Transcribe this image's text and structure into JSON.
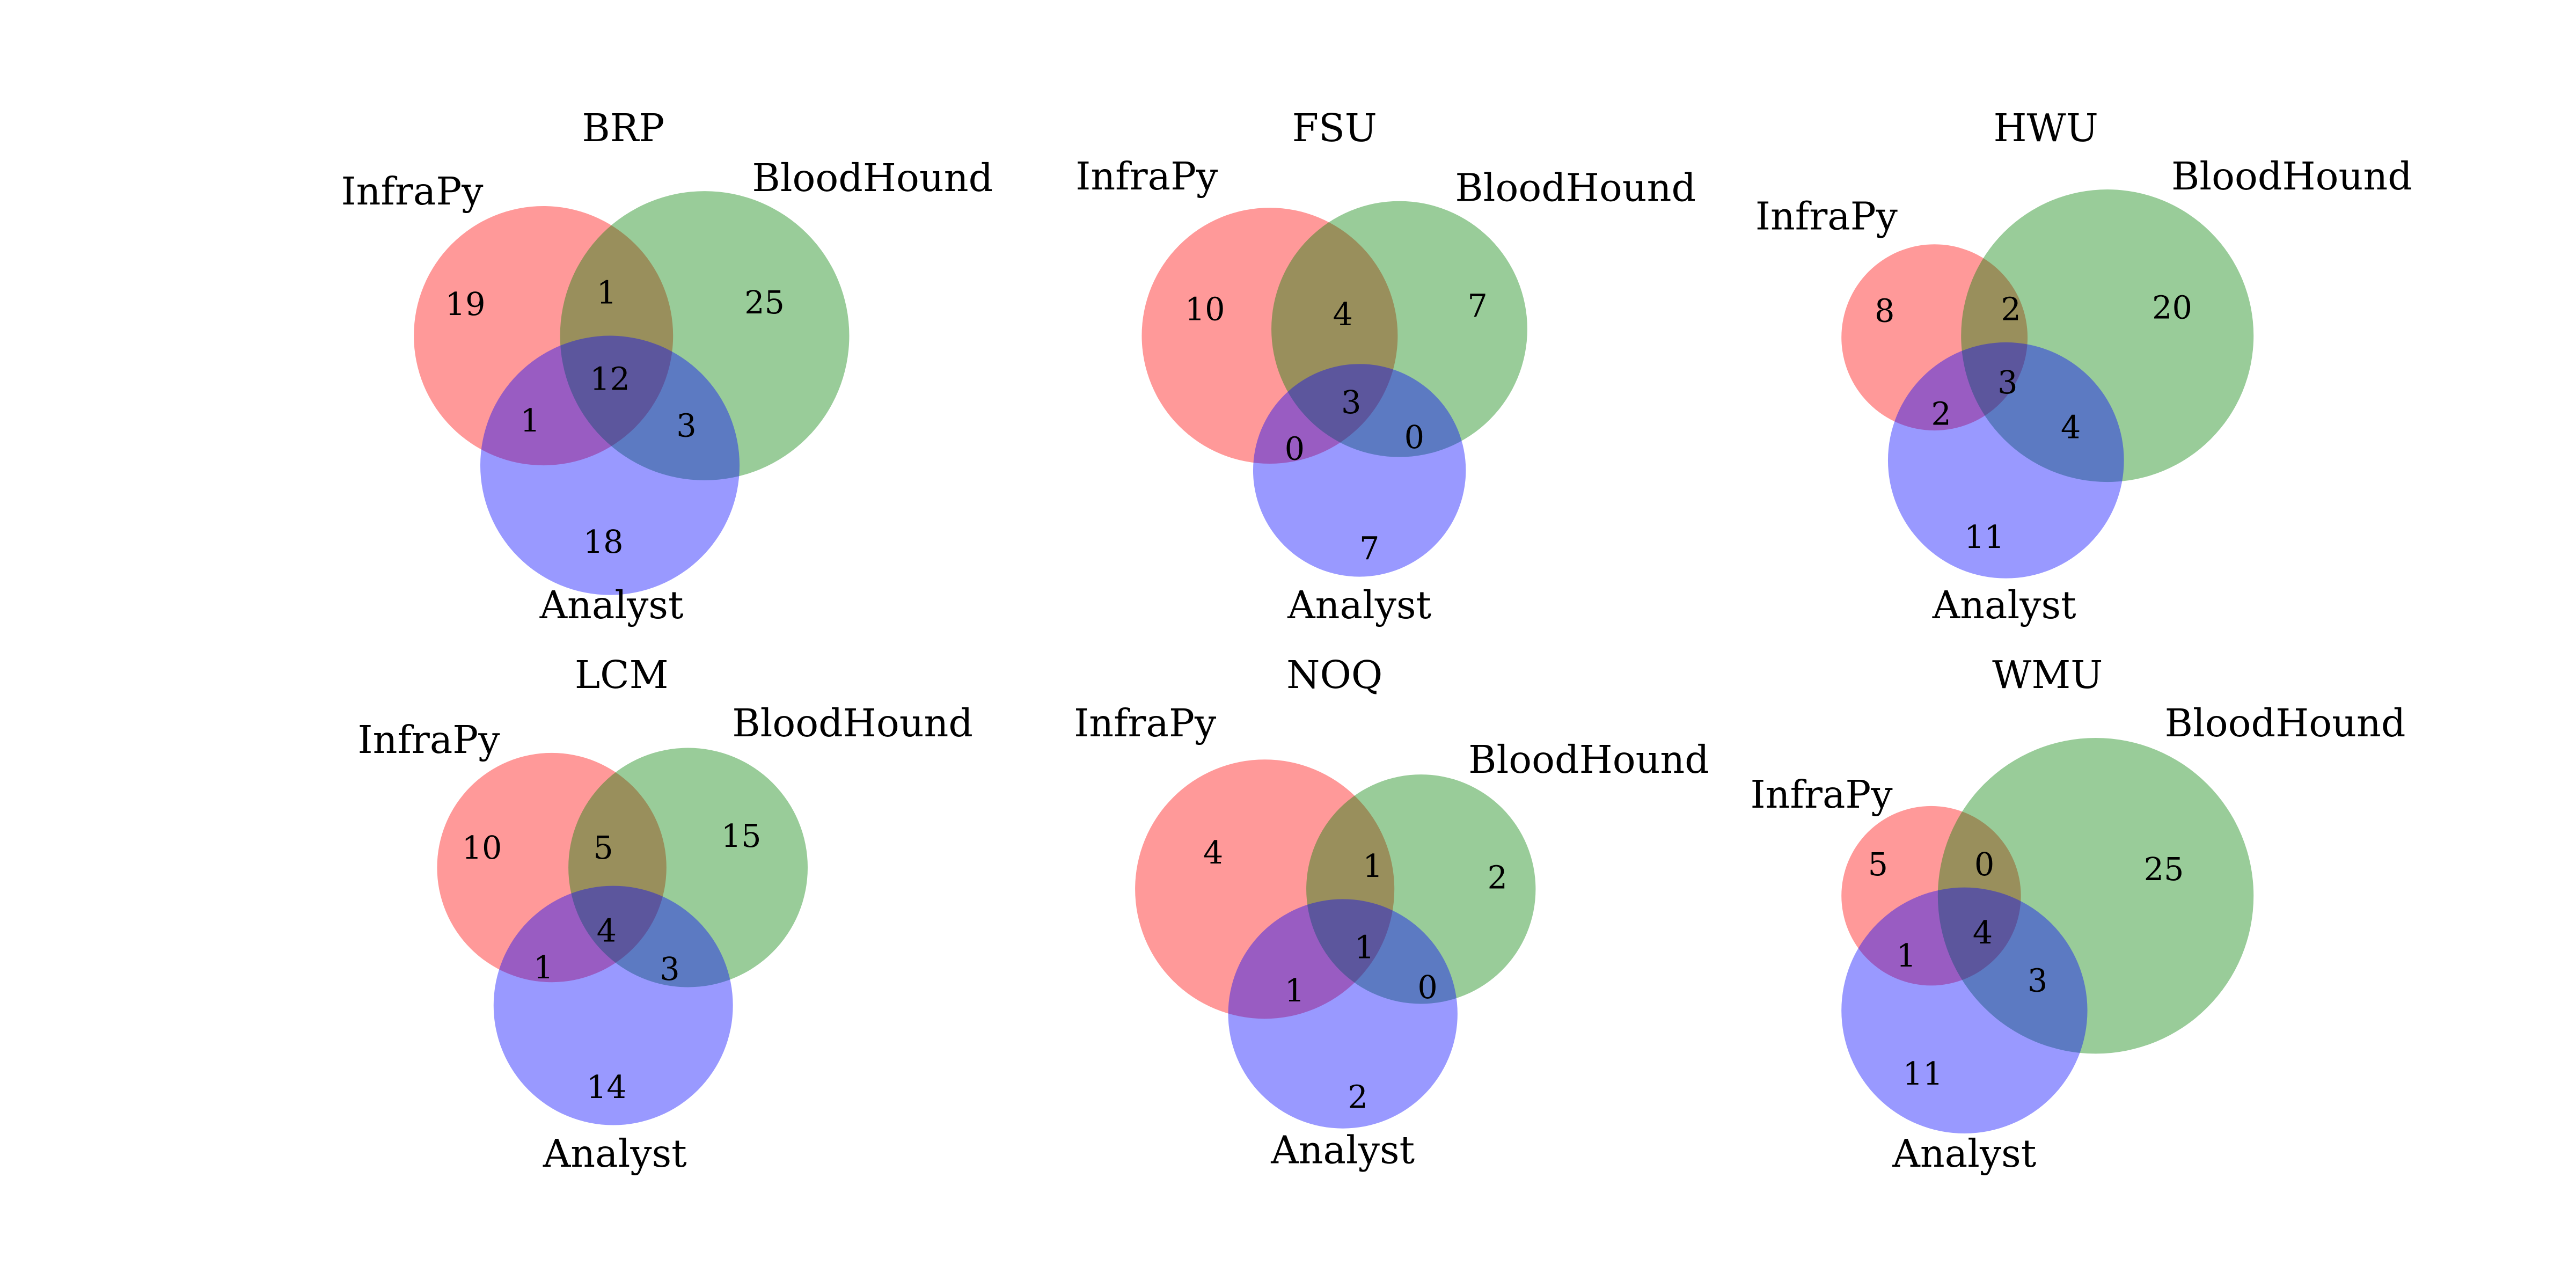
{
  "chart_data": [
    {
      "type": "venn",
      "title": "BRP",
      "sets": [
        "InfraPy",
        "BloodHound",
        "Analyst"
      ],
      "regions": {
        "InfraPy_only": 19,
        "BloodHound_only": 25,
        "Analyst_only": 18,
        "InfraPy_BloodHound": 1,
        "InfraPy_Analyst": 1,
        "BloodHound_Analyst": 3,
        "all_three": 12
      }
    },
    {
      "type": "venn",
      "title": "FSU",
      "sets": [
        "InfraPy",
        "BloodHound",
        "Analyst"
      ],
      "regions": {
        "InfraPy_only": 10,
        "BloodHound_only": 7,
        "Analyst_only": 7,
        "InfraPy_BloodHound": 4,
        "InfraPy_Analyst": 0,
        "BloodHound_Analyst": 0,
        "all_three": 3
      }
    },
    {
      "type": "venn",
      "title": "HWU",
      "sets": [
        "InfraPy",
        "BloodHound",
        "Analyst"
      ],
      "regions": {
        "InfraPy_only": 8,
        "BloodHound_only": 20,
        "Analyst_only": 11,
        "InfraPy_BloodHound": 2,
        "InfraPy_Analyst": 2,
        "BloodHound_Analyst": 4,
        "all_three": 3
      }
    },
    {
      "type": "venn",
      "title": "LCM",
      "sets": [
        "InfraPy",
        "BloodHound",
        "Analyst"
      ],
      "regions": {
        "InfraPy_only": 10,
        "BloodHound_only": 15,
        "Analyst_only": 14,
        "InfraPy_BloodHound": 5,
        "InfraPy_Analyst": 1,
        "BloodHound_Analyst": 3,
        "all_three": 4
      }
    },
    {
      "type": "venn",
      "title": "NOQ",
      "sets": [
        "InfraPy",
        "BloodHound",
        "Analyst"
      ],
      "regions": {
        "InfraPy_only": 4,
        "BloodHound_only": 2,
        "Analyst_only": 2,
        "InfraPy_BloodHound": 1,
        "InfraPy_Analyst": 1,
        "BloodHound_Analyst": 0,
        "all_three": 1
      }
    },
    {
      "type": "venn",
      "title": "WMU",
      "sets": [
        "InfraPy",
        "BloodHound",
        "Analyst"
      ],
      "regions": {
        "InfraPy_only": 5,
        "BloodHound_only": 25,
        "Analyst_only": 11,
        "InfraPy_BloodHound": 0,
        "InfraPy_Analyst": 1,
        "BloodHound_Analyst": 3,
        "all_three": 4
      }
    }
  ],
  "colors": {
    "InfraPy": "#ff0000",
    "BloodHound": "#008000",
    "Analyst": "#0000ff",
    "label_text": "#000000"
  }
}
